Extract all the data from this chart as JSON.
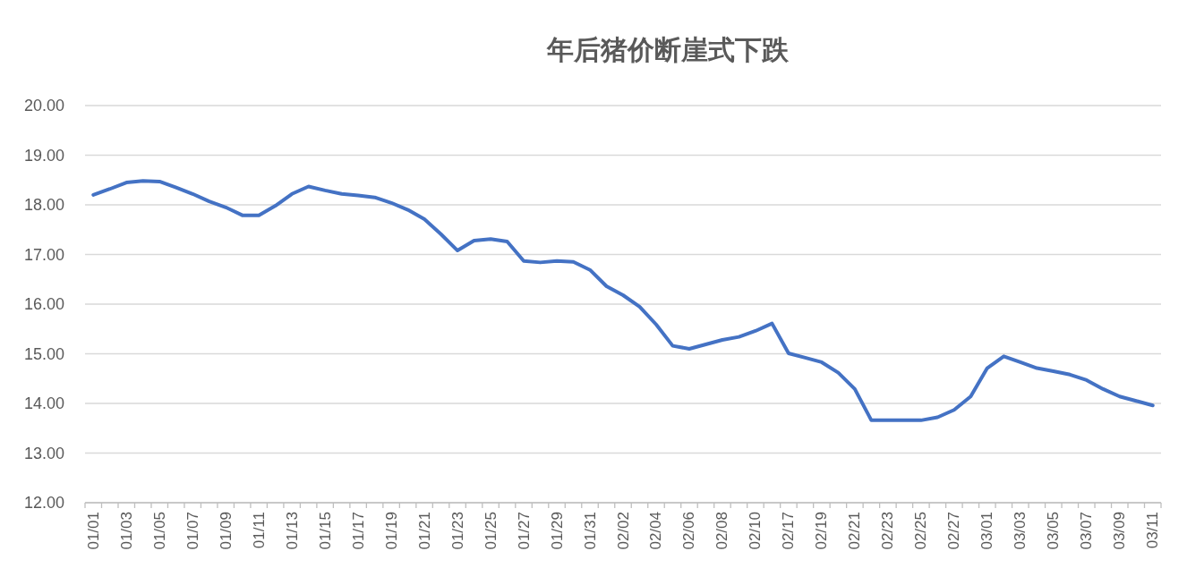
{
  "chart_data": {
    "type": "line",
    "title": "年后猪价断崖式下跌",
    "categories": [
      "01/01",
      null,
      "01/03",
      null,
      "01/05",
      null,
      "01/07",
      null,
      "01/09",
      null,
      "01/11",
      null,
      "01/13",
      null,
      "01/15",
      null,
      "01/17",
      null,
      "01/19",
      null,
      "01/21",
      null,
      "01/23",
      null,
      "01/25",
      null,
      "01/27",
      null,
      "01/29",
      null,
      "01/31",
      null,
      "02/02",
      null,
      "02/04",
      null,
      "02/06",
      null,
      "02/08",
      null,
      "02/10",
      null,
      "02/17",
      null,
      "02/19",
      null,
      "02/21",
      null,
      "02/23",
      null,
      "02/25",
      null,
      "02/27",
      null,
      "03/01",
      null,
      "03/03",
      null,
      "03/05",
      null,
      "03/07",
      null,
      "03/09",
      null,
      "03/11"
    ],
    "series": [
      {
        "color": "#4472c4",
        "values": [
          18.2,
          18.32,
          18.45,
          18.48,
          18.47,
          18.35,
          18.22,
          18.07,
          17.95,
          17.79,
          17.79,
          17.98,
          18.22,
          18.37,
          18.29,
          18.22,
          18.19,
          18.15,
          18.04,
          17.9,
          17.71,
          17.41,
          17.08,
          17.28,
          17.31,
          17.26,
          16.87,
          16.84,
          16.87,
          16.85,
          16.69,
          16.36,
          16.18,
          15.95,
          15.59,
          15.16,
          15.1,
          15.19,
          15.28,
          15.34,
          15.46,
          15.61,
          15.01,
          14.92,
          14.83,
          14.62,
          14.29,
          13.66,
          13.66,
          13.66,
          13.66,
          13.72,
          13.87,
          14.14,
          14.71,
          14.95,
          14.83,
          14.71,
          14.65,
          14.58,
          14.47,
          14.29,
          14.14,
          14.05,
          13.96
        ]
      }
    ],
    "ylim": [
      12,
      20
    ],
    "yticks": [
      {
        "value": 12,
        "label": "12.00"
      },
      {
        "value": 13,
        "label": "13.00"
      },
      {
        "value": 14,
        "label": "14.00"
      },
      {
        "value": 15,
        "label": "15.00"
      },
      {
        "value": 16,
        "label": "16.00"
      },
      {
        "value": 17,
        "label": "17.00"
      },
      {
        "value": 18,
        "label": "18.00"
      },
      {
        "value": 19,
        "label": "19.00"
      },
      {
        "value": 20,
        "label": "20.00"
      }
    ],
    "grid": "y",
    "marker": "none"
  }
}
